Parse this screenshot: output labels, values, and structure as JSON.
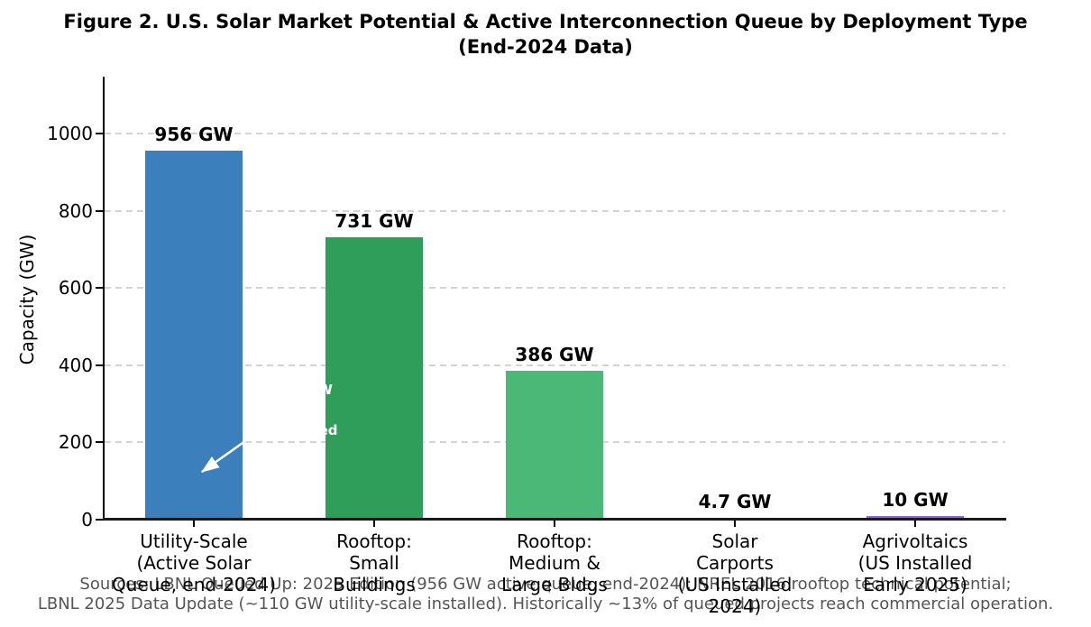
{
  "figure": {
    "title": "Figure 2. U.S. Solar Market Potential & Active Interconnection Queue by Deployment Type\n(End-2024 Data)",
    "caption": "Sources: LBNL Queued Up: 2025 Edition (956 GW active queue, end-2024); NREL 2016 rooftop technical potential;\nLBNL 2025 Data Update (~110 GW utility-scale installed). Historically ~13% of queued projects reach commercial operation."
  },
  "chart_data": {
    "type": "bar",
    "title": "Figure 2. U.S. Solar Market Potential & Active Interconnection Queue by Deployment Type (End-2024 Data)",
    "xlabel": "",
    "ylabel": "Capacity (GW)",
    "ylim": [
      0,
      1140
    ],
    "yticks": [
      0,
      200,
      400,
      600,
      800,
      1000
    ],
    "grid": "horizontal dashed gridlines",
    "legend": "none",
    "categories": [
      "Utility-Scale\n(Active Solar\nQueue, end-2024)",
      "Rooftop:\nSmall\nBuildings",
      "Rooftop:\nMedium &\nLarge Bldgs",
      "Solar\nCarports\n(US Installed\n2024)",
      "Agrivoltaics\n(US Installed\nEarly 2025)"
    ],
    "values": [
      956,
      731,
      386,
      4.7,
      10
    ],
    "value_labels": [
      "956 GW",
      "731 GW",
      "386 GW",
      "4.7 GW",
      "10 GW"
    ],
    "bar_colors": [
      "#3b80bd",
      "#2f9e5a",
      "#4cb877",
      "#f5d2ab",
      "#9065e0"
    ],
    "axis_color": "#000000",
    "annotation": {
      "text": "~124 GW\n(~13%)\ncompleted",
      "color": "#ffffff",
      "arrow_color": "#ffffff",
      "points_to": {
        "category": "Utility-Scale",
        "value_gw": 124
      }
    }
  }
}
